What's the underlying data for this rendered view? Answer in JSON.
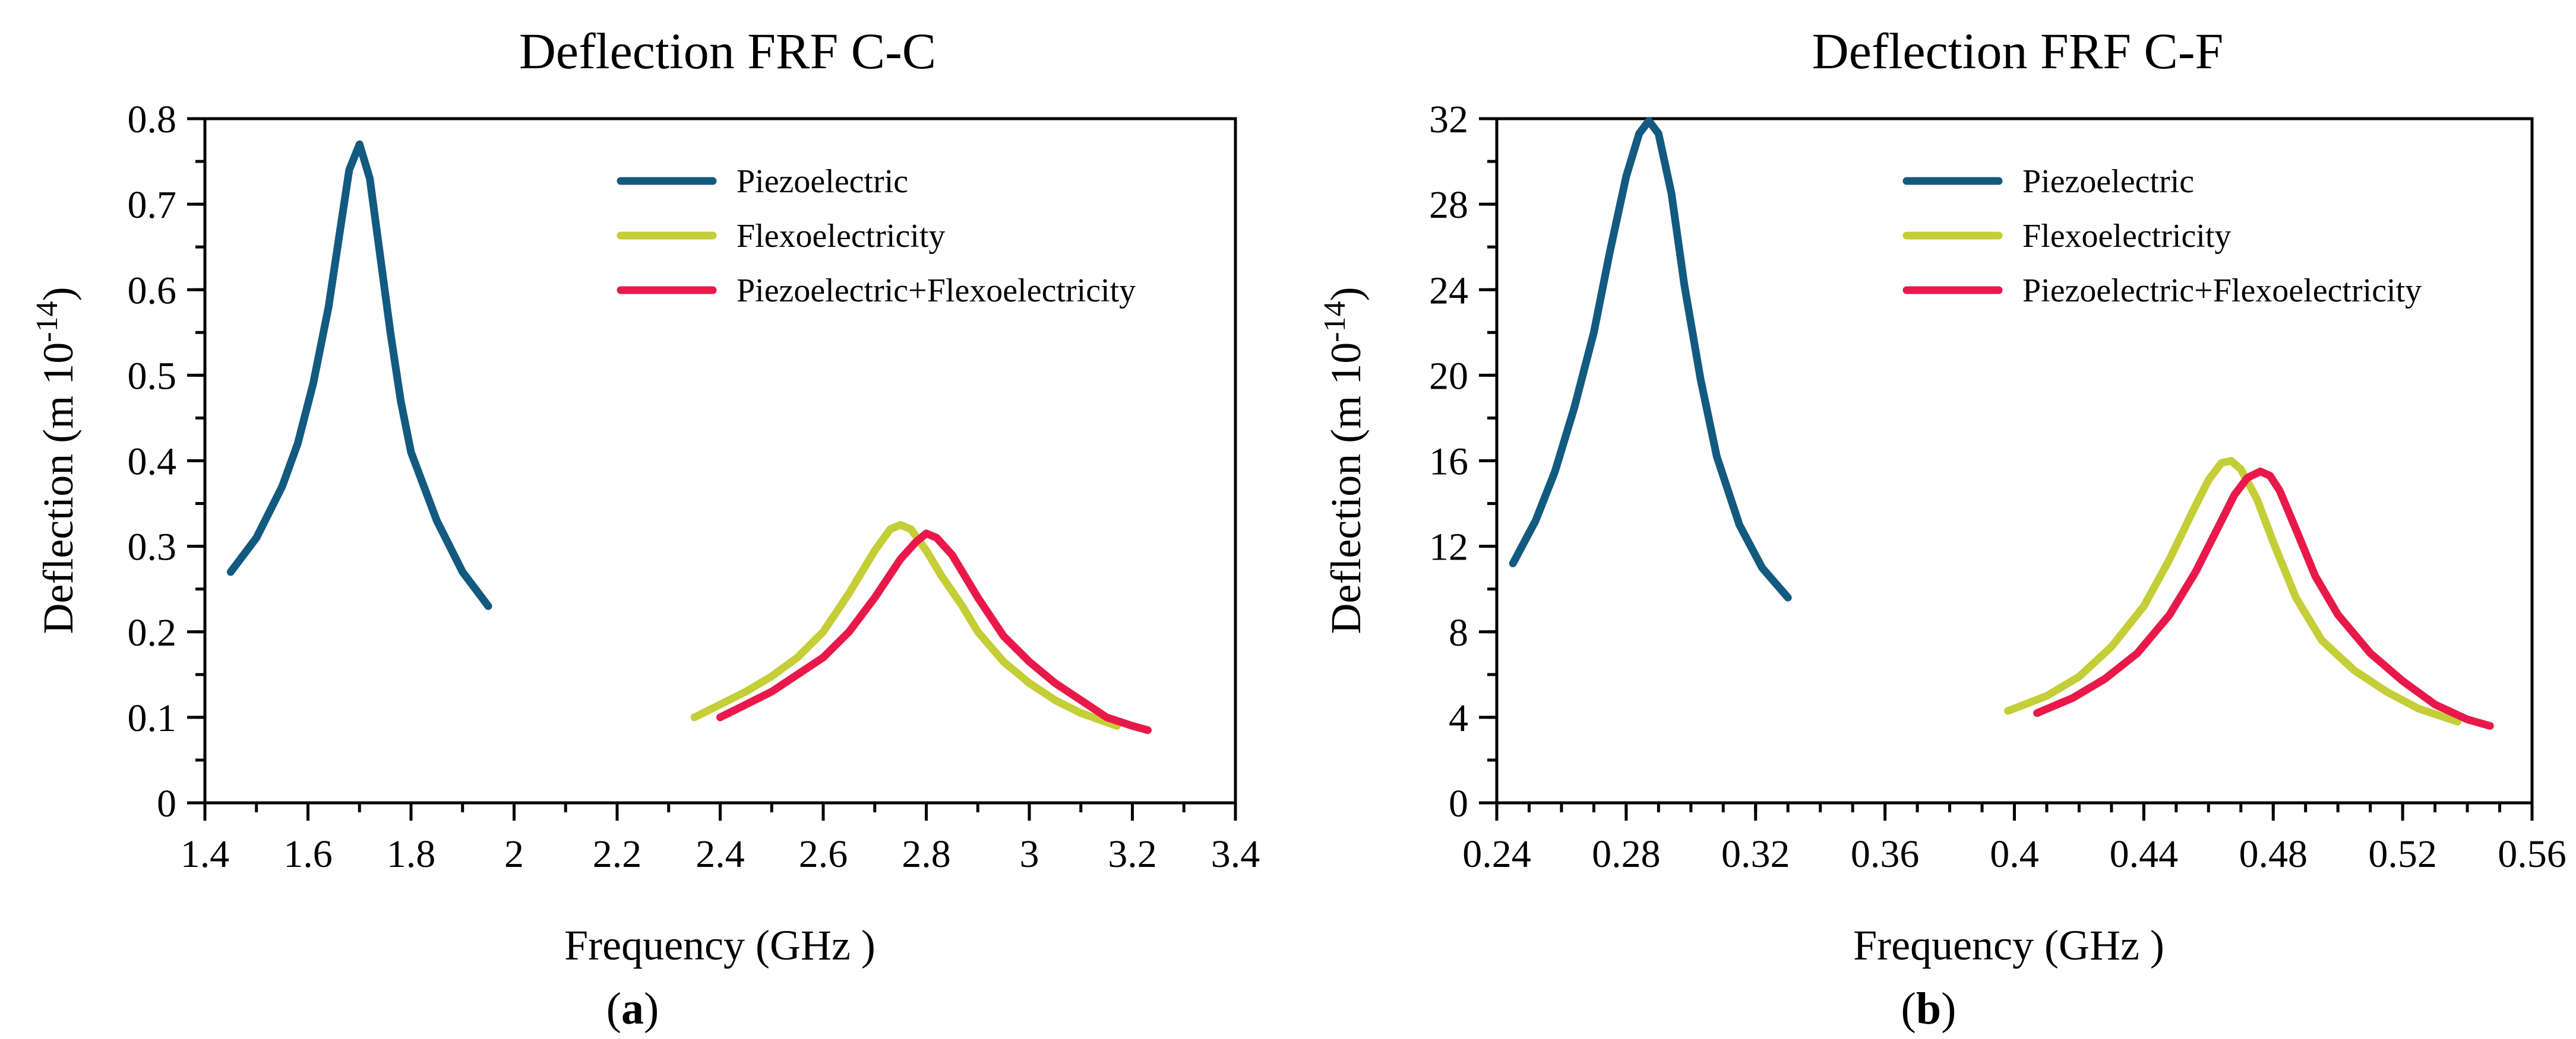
{
  "chart_data": [
    {
      "type": "line",
      "panel": "a",
      "title": "Deflection FRF  C-C",
      "xlabel": "Frequency (GHz )",
      "ylabel": "Deflection (m 10",
      "ylabel_exp": "-14",
      "ylabel_close": ")",
      "caption_open": "(",
      "caption_letter": "a",
      "caption_close": ")",
      "xlim": [
        1.4,
        3.4
      ],
      "ylim": [
        0,
        0.8
      ],
      "xticks": [
        1.4,
        1.6,
        1.8,
        2,
        2.2,
        2.4,
        2.6,
        2.8,
        3,
        3.2,
        3.4
      ],
      "xtick_labels": [
        "1.4",
        "1.6",
        "1.8",
        "2",
        "2.2",
        "2.4",
        "2.6",
        "2.8",
        "3",
        "3.2",
        "3.4"
      ],
      "yticks": [
        0,
        0.1,
        0.2,
        0.3,
        0.4,
        0.5,
        0.6,
        0.7,
        0.8
      ],
      "ytick_labels": [
        "0",
        "0.1",
        "0.2",
        "0.3",
        "0.4",
        "0.5",
        "0.6",
        "0.7",
        "0.8"
      ],
      "x_minor_step": 0.1,
      "y_minor_step": 0.05,
      "legend_position": "top-right",
      "series": [
        {
          "name": "Piezoelectric",
          "color": "#135A80",
          "x": [
            1.45,
            1.5,
            1.55,
            1.58,
            1.61,
            1.64,
            1.66,
            1.68,
            1.7,
            1.72,
            1.74,
            1.76,
            1.78,
            1.8,
            1.85,
            1.9,
            1.95
          ],
          "y": [
            0.27,
            0.31,
            0.37,
            0.42,
            0.49,
            0.58,
            0.66,
            0.74,
            0.77,
            0.73,
            0.64,
            0.55,
            0.47,
            0.41,
            0.33,
            0.27,
            0.23
          ]
        },
        {
          "name": "Flexoelectricity",
          "color": "#C4CE36",
          "x": [
            2.35,
            2.4,
            2.45,
            2.5,
            2.55,
            2.6,
            2.65,
            2.7,
            2.73,
            2.75,
            2.77,
            2.8,
            2.83,
            2.87,
            2.9,
            2.95,
            3.0,
            3.05,
            3.1,
            3.17
          ],
          "y": [
            0.1,
            0.115,
            0.13,
            0.148,
            0.17,
            0.2,
            0.245,
            0.295,
            0.32,
            0.325,
            0.32,
            0.295,
            0.265,
            0.23,
            0.2,
            0.165,
            0.14,
            0.12,
            0.105,
            0.09
          ]
        },
        {
          "name": "Piezoelectric+Flexoelectricity",
          "color": "#E8194A",
          "x": [
            2.4,
            2.45,
            2.5,
            2.55,
            2.6,
            2.65,
            2.7,
            2.75,
            2.78,
            2.8,
            2.82,
            2.85,
            2.9,
            2.95,
            3.0,
            3.05,
            3.1,
            3.15,
            3.2,
            3.23
          ],
          "y": [
            0.1,
            0.115,
            0.13,
            0.15,
            0.17,
            0.2,
            0.24,
            0.285,
            0.305,
            0.315,
            0.31,
            0.29,
            0.24,
            0.195,
            0.165,
            0.14,
            0.12,
            0.1,
            0.09,
            0.085
          ]
        }
      ]
    },
    {
      "type": "line",
      "panel": "b",
      "title": "Deflection FRF  C-F",
      "xlabel": "Frequency (GHz )",
      "ylabel": "Deflection (m 10",
      "ylabel_exp": "-14",
      "ylabel_close": ")",
      "caption_open": "(",
      "caption_letter": "b",
      "caption_close": ")",
      "xlim": [
        0.24,
        0.56
      ],
      "ylim": [
        0,
        32
      ],
      "xticks": [
        0.24,
        0.28,
        0.32,
        0.36,
        0.4,
        0.44,
        0.48,
        0.52,
        0.56
      ],
      "xtick_labels": [
        "0.24",
        "0.28",
        "0.32",
        "0.36",
        "0.4",
        "0.44",
        "0.48",
        "0.52",
        "0.56"
      ],
      "yticks": [
        0,
        4,
        8,
        12,
        16,
        20,
        24,
        28,
        32
      ],
      "ytick_labels": [
        "0",
        "4",
        "8",
        "12",
        "16",
        "20",
        "24",
        "28",
        "32"
      ],
      "x_minor_step": 0.01,
      "y_minor_step": 2,
      "legend_position": "top-right",
      "series": [
        {
          "name": "Piezoelectric",
          "color": "#135A80",
          "x": [
            0.245,
            0.252,
            0.258,
            0.264,
            0.27,
            0.275,
            0.28,
            0.284,
            0.287,
            0.29,
            0.294,
            0.298,
            0.303,
            0.308,
            0.315,
            0.322,
            0.33
          ],
          "y": [
            11.2,
            13.2,
            15.5,
            18.5,
            22.0,
            25.8,
            29.3,
            31.3,
            31.9,
            31.3,
            28.5,
            24.2,
            19.8,
            16.2,
            13.0,
            11.0,
            9.6
          ]
        },
        {
          "name": "Flexoelectricity",
          "color": "#C4CE36",
          "x": [
            0.398,
            0.41,
            0.42,
            0.43,
            0.44,
            0.448,
            0.455,
            0.46,
            0.464,
            0.467,
            0.47,
            0.475,
            0.48,
            0.487,
            0.495,
            0.505,
            0.515,
            0.525,
            0.537
          ],
          "y": [
            4.3,
            5.0,
            5.9,
            7.3,
            9.2,
            11.4,
            13.6,
            15.1,
            15.9,
            16.0,
            15.6,
            14.2,
            12.2,
            9.6,
            7.6,
            6.2,
            5.2,
            4.4,
            3.8
          ]
        },
        {
          "name": "Piezoelectric+Flexoelectricity",
          "color": "#E8194A",
          "x": [
            0.407,
            0.418,
            0.428,
            0.438,
            0.448,
            0.456,
            0.463,
            0.468,
            0.472,
            0.476,
            0.479,
            0.482,
            0.487,
            0.493,
            0.5,
            0.51,
            0.52,
            0.53,
            0.54,
            0.547
          ],
          "y": [
            4.2,
            4.9,
            5.8,
            7.0,
            8.8,
            10.8,
            12.9,
            14.4,
            15.2,
            15.5,
            15.3,
            14.6,
            12.8,
            10.6,
            8.8,
            7.0,
            5.7,
            4.6,
            3.9,
            3.6
          ]
        }
      ]
    }
  ]
}
